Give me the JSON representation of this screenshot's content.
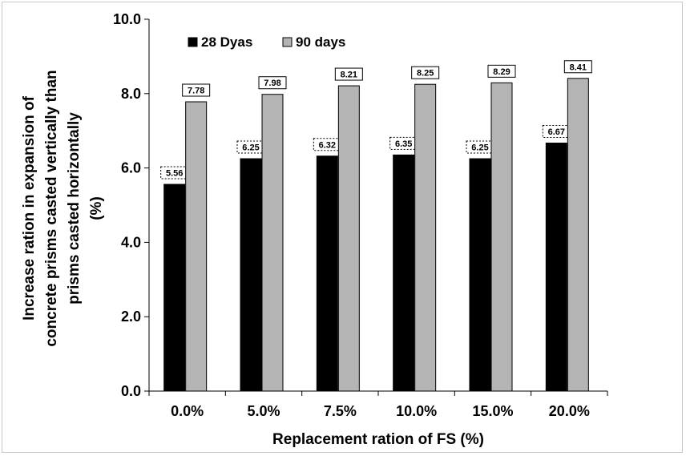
{
  "chart_data": {
    "type": "bar",
    "categories": [
      "0.0%",
      "5.0%",
      "7.5%",
      "10.0%",
      "15.0%",
      "20.0%"
    ],
    "series": [
      {
        "name": "28 Dyas",
        "values": [
          5.56,
          6.25,
          6.32,
          6.35,
          6.25,
          6.67
        ],
        "color": "#000000"
      },
      {
        "name": "90 days",
        "values": [
          7.78,
          7.98,
          8.21,
          8.25,
          8.29,
          8.41
        ],
        "color": "#b4b4b4"
      }
    ],
    "data_labels": {
      "28 Dyas": [
        "5.56",
        "6.25",
        "6.32",
        "6.35",
        "6.25",
        "6.67"
      ],
      "90 days": [
        "7.78",
        "7.98",
        "8.21",
        "8.25",
        "8.29",
        "8.41"
      ]
    },
    "yticks": [
      "0.0",
      "2.0",
      "4.0",
      "6.0",
      "8.0",
      "10.0"
    ],
    "ylim": [
      0,
      10
    ],
    "xlabel": "Replacement ration of FS (%)",
    "ylabel_lines": [
      "Increase ration in expansion of",
      "concrete prisms casted vertically than",
      "prisms casted horizontally",
      "(%)"
    ],
    "legend_position": "top-left",
    "grid": false
  }
}
